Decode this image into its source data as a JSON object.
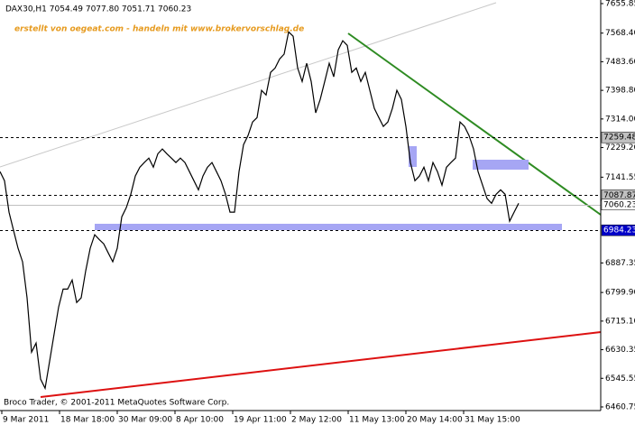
{
  "chart_data": {
    "type": "line",
    "header": "DAX30,H1  7054.49 7077.80 7051.71 7060.23",
    "watermark": "erstellt von oegeat.com - handeln mit www.brokervorschlag.de",
    "copyright": "Broco Trader, © 2001-2011 MetaQuotes Software Corp.",
    "x": [
      0,
      2.5,
      5,
      7.5,
      10,
      12.5,
      15,
      17.5,
      20,
      22.5,
      25,
      27.5,
      30,
      32.5,
      35,
      37.5,
      40,
      42.5,
      45,
      47.5,
      50,
      52.5,
      55,
      57.5,
      60,
      62.5,
      65,
      67.5,
      70,
      72.5,
      75,
      77.5,
      80,
      82.5,
      85,
      87.5,
      90,
      92.5,
      95,
      97.5,
      100,
      102.5,
      105,
      107.5,
      110,
      112.5,
      115,
      117.5,
      120,
      122.5,
      125,
      127.5,
      130,
      132.5,
      135,
      137.5,
      140,
      142.5,
      145,
      147.5,
      150,
      152.5,
      155,
      157.5,
      160,
      162.5,
      165,
      167.5,
      170,
      172.5,
      175,
      177.5,
      180,
      182.5,
      185,
      187.5,
      190,
      192.5,
      195,
      197.5,
      200,
      202.5,
      205,
      207.5,
      210,
      212.5,
      215,
      217.5,
      220,
      222.5,
      225,
      227.5,
      230,
      232.5,
      235,
      237.5,
      240,
      242.5,
      245,
      247.5,
      250,
      252.5,
      255,
      257.5,
      260,
      262.5,
      265,
      267.5,
      270,
      272.5,
      275,
      277.5,
      280,
      282.5,
      285,
      287.5
    ],
    "series": [
      {
        "name": "DAX30",
        "color": "#000000",
        "values": [
          7158,
          7131,
          7038,
          6984,
          6931,
          6891,
          6784,
          6623,
          6650,
          6543,
          6516,
          6596,
          6677,
          6757,
          6810,
          6810,
          6837,
          6770,
          6784,
          6864,
          6931,
          6971,
          6957,
          6944,
          6917,
          6891,
          6931,
          7024,
          7051,
          7091,
          7145,
          7171,
          7185,
          7198,
          7171,
          7211,
          7225,
          7211,
          7198,
          7185,
          7198,
          7185,
          7158,
          7131,
          7104,
          7145,
          7171,
          7185,
          7158,
          7131,
          7091,
          7038,
          7038,
          7158,
          7238,
          7265,
          7305,
          7318,
          7399,
          7385,
          7452,
          7465,
          7492,
          7506,
          7572,
          7559,
          7465,
          7425,
          7479,
          7425,
          7332,
          7372,
          7425,
          7479,
          7439,
          7519,
          7546,
          7532,
          7452,
          7465,
          7425,
          7452,
          7399,
          7345,
          7318,
          7292,
          7305,
          7345,
          7399,
          7372,
          7292,
          7185,
          7131,
          7145,
          7171,
          7131,
          7185,
          7158,
          7118,
          7171,
          7185,
          7198,
          7305,
          7292,
          7265,
          7225,
          7158,
          7118,
          7078,
          7064,
          7091,
          7104,
          7091,
          7011,
          7038,
          7064
        ]
      }
    ],
    "xlim": [
      0,
      333
    ],
    "xticks": [
      {
        "value": 1,
        "label": "9 Mar 2011"
      },
      {
        "value": 33,
        "label": "18 Mar 18:00"
      },
      {
        "value": 65,
        "label": "30 Mar 09:00"
      },
      {
        "value": 97,
        "label": "8 Apr 10:00"
      },
      {
        "value": 129,
        "label": "19 Apr 11:00"
      },
      {
        "value": 161,
        "label": "2 May 12:00"
      },
      {
        "value": 193,
        "label": "11 May 13:00"
      },
      {
        "value": 225,
        "label": "20 May 14:00"
      },
      {
        "value": 257,
        "label": "31 May 15:00"
      }
    ],
    "ylim": [
      6450,
      7666.5
    ],
    "yticks": [
      7655.85,
      {
        "value": 7568.4,
        "label": "7568.40"
      },
      {
        "value": 7483.6,
        "label": "7483.60"
      },
      {
        "value": 7398.8,
        "label": "7398.80"
      },
      {
        "value": 7314,
        "label": "7314.00"
      },
      {
        "value": 7229.2,
        "label": "7229.20"
      },
      7141.55,
      6887.35,
      {
        "value": 6799.9,
        "label": "6799.90"
      },
      {
        "value": 6715.1,
        "label": "6715.10"
      },
      6630.35,
      6545.55,
      6460.75
    ],
    "levels": [
      7259.48,
      7087.87,
      7060.23,
      6984.23
    ]
  }
}
